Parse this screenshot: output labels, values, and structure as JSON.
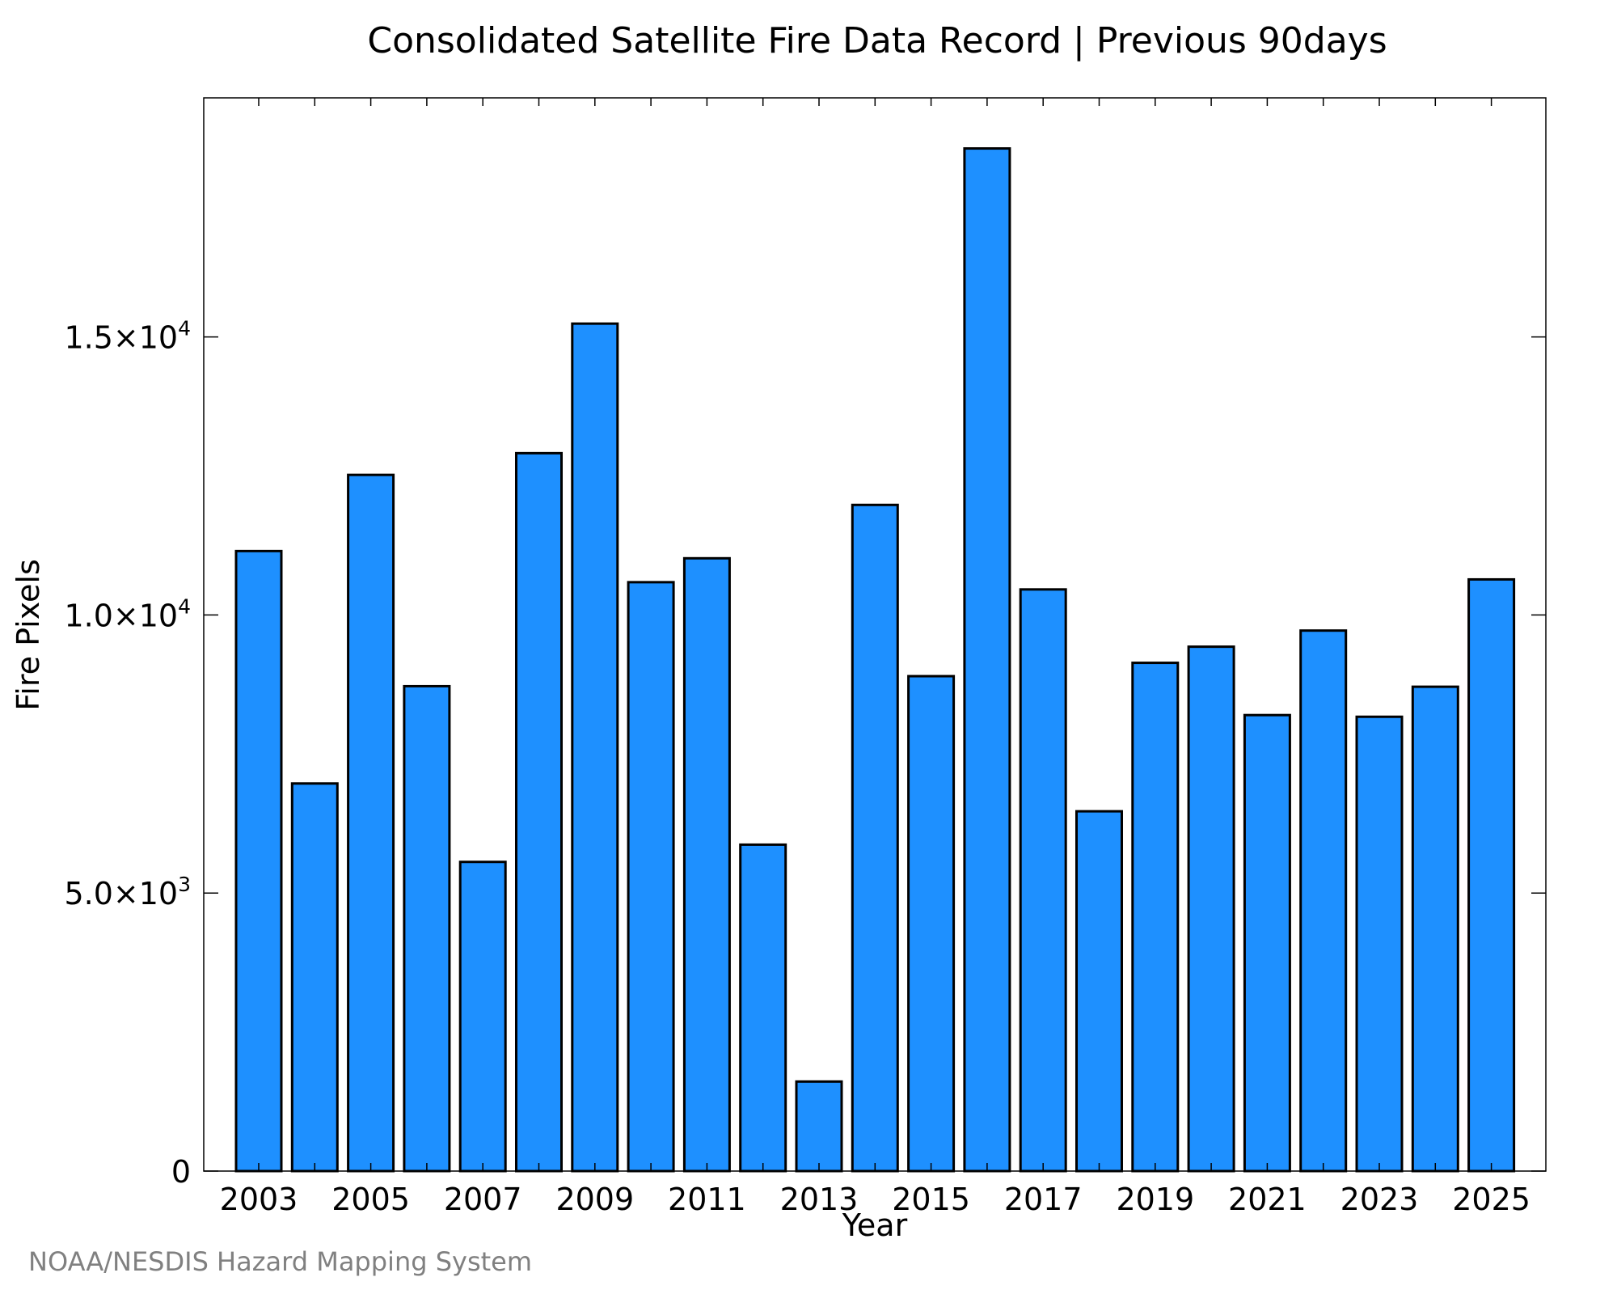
{
  "chart_data": {
    "type": "bar",
    "title": "Consolidated Satellite Fire Data Record | Previous 90days",
    "xlabel": "Year",
    "ylabel": "Fire Pixels",
    "categories": [
      "2003",
      "2004",
      "2005",
      "2006",
      "2007",
      "2008",
      "2009",
      "2010",
      "2011",
      "2012",
      "2013",
      "2014",
      "2015",
      "2016",
      "2017",
      "2018",
      "2019",
      "2020",
      "2021",
      "2022",
      "2023",
      "2024",
      "2025"
    ],
    "x_tick_labels": [
      "2003",
      "2005",
      "2007",
      "2009",
      "2011",
      "2013",
      "2015",
      "2017",
      "2019",
      "2021",
      "2023",
      "2025"
    ],
    "values": [
      11150,
      6970,
      12520,
      8720,
      5560,
      12910,
      15240,
      10590,
      11020,
      5870,
      1610,
      11980,
      8900,
      18390,
      10460,
      6470,
      9140,
      9430,
      8200,
      9720,
      8170,
      8710,
      10640
    ],
    "ylim": [
      0,
      19300
    ],
    "y_ticks": [
      {
        "value": 0,
        "mantissa": "0",
        "exponent": ""
      },
      {
        "value": 5000,
        "mantissa": "5.0×10",
        "exponent": "3"
      },
      {
        "value": 10000,
        "mantissa": "1.0×10",
        "exponent": "4"
      },
      {
        "value": 15000,
        "mantissa": "1.5×10",
        "exponent": "4"
      }
    ],
    "grid": false,
    "bar_color": "#1e90ff",
    "bar_edge_color": "#000000"
  },
  "credit": "NOAA/NESDIS Hazard Mapping System"
}
